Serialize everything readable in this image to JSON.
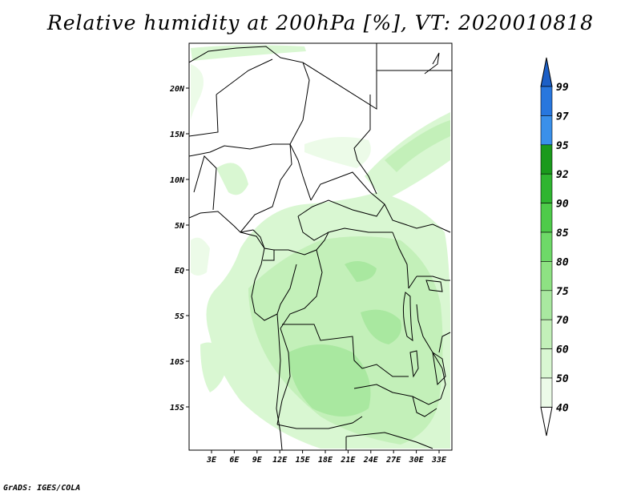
{
  "title": "Relative humidity at 200hPa [%], VT: 2020010818",
  "credit": "GrADS: IGES/COLA",
  "map": {
    "lat_labels": [
      "20N",
      "15N",
      "10N",
      "5N",
      "EQ",
      "5S",
      "10S",
      "15S"
    ],
    "lon_labels": [
      "3E",
      "6E",
      "9E",
      "12E",
      "15E",
      "18E",
      "21E",
      "24E",
      "27E",
      "30E",
      "33E"
    ]
  },
  "colorbar": {
    "levels": [
      "99",
      "97",
      "95",
      "92",
      "90",
      "85",
      "80",
      "75",
      "70",
      "60",
      "50",
      "40"
    ],
    "colors": {
      "c40_50": "#ecfbe8",
      "c50_60": "#d9f7d2",
      "c60_70": "#c3f0b9",
      "c70_75": "#a9e8a0",
      "c75_80": "#8ee283",
      "c80_85": "#6ed968",
      "c85_90": "#4ecb4a",
      "c90_92": "#2fb530",
      "c92_95": "#1a9a1c",
      "c95_97": "#3a90ea",
      "c97_99": "#2877de",
      "c99up": "#1c5fc6"
    }
  }
}
